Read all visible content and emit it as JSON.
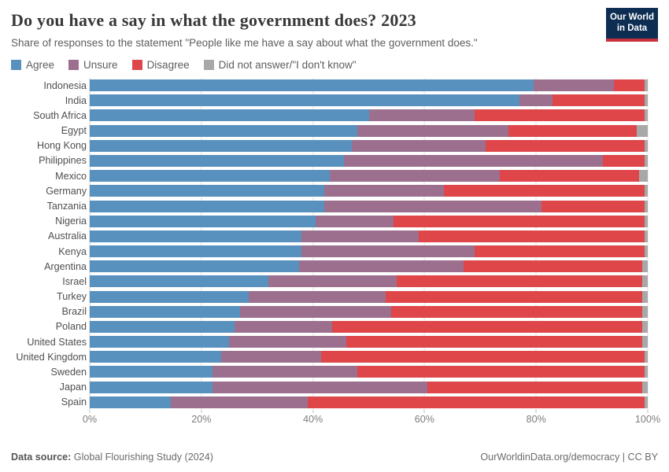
{
  "header": {
    "title": "Do you have a say in what the government does? 2023",
    "subtitle": "Share of responses to the statement \"People like me have a say about what the government does.\"",
    "logo": {
      "line1": "Our World",
      "line2": "in Data",
      "bg_color": "#0d2e52",
      "stripe_color": "#c9303c"
    }
  },
  "legend": [
    {
      "label": "Agree",
      "color": "#5890be"
    },
    {
      "label": "Unsure",
      "color": "#9c6f8f"
    },
    {
      "label": "Disagree",
      "color": "#de464a"
    },
    {
      "label": "Did not answer/\"I don't know\"",
      "color": "#a8a8a8"
    }
  ],
  "chart_data": {
    "type": "bar",
    "stacked": true,
    "orientation": "horizontal",
    "title": "Do you have a say in what the government does? 2023",
    "xlabel": "",
    "ylabel": "",
    "xlim": [
      0,
      100
    ],
    "grid": true,
    "legend_position": "top",
    "x_ticks": [
      "0%",
      "20%",
      "40%",
      "60%",
      "80%",
      "100%"
    ],
    "x_tick_values": [
      0,
      20,
      40,
      60,
      80,
      100
    ],
    "categories": [
      "Indonesia",
      "India",
      "South Africa",
      "Egypt",
      "Hong Kong",
      "Philippines",
      "Mexico",
      "Germany",
      "Tanzania",
      "Nigeria",
      "Australia",
      "Kenya",
      "Argentina",
      "Israel",
      "Turkey",
      "Brazil",
      "Poland",
      "United States",
      "United Kingdom",
      "Sweden",
      "Japan",
      "Spain"
    ],
    "series": [
      {
        "name": "Agree",
        "color": "#5890be",
        "values": [
          79.5,
          77,
          50,
          48,
          47,
          45.5,
          43,
          42,
          42,
          40.5,
          38,
          38,
          37.5,
          32,
          28.5,
          27,
          26,
          25,
          23.5,
          22,
          22,
          14.5
        ]
      },
      {
        "name": "Unsure",
        "color": "#9c6f8f",
        "values": [
          14.5,
          6,
          19,
          27,
          24,
          46.5,
          30.5,
          21.5,
          39,
          14,
          21,
          31,
          29.5,
          23,
          24.5,
          27,
          17.5,
          21,
          18,
          26,
          38.5,
          24.5
        ]
      },
      {
        "name": "Disagree",
        "color": "#de464a",
        "values": [
          5.5,
          16.5,
          30.5,
          23,
          28.5,
          7.5,
          25,
          36,
          18.5,
          45,
          40.5,
          30.5,
          32,
          44,
          46,
          45,
          55.5,
          53,
          58,
          51.5,
          38.5,
          60.5
        ]
      },
      {
        "name": "Did not answer/\"I don't know\"",
        "color": "#a8a8a8",
        "values": [
          0.5,
          0.5,
          0.5,
          2,
          0.5,
          0.5,
          1.5,
          0.5,
          0.5,
          0.5,
          0.5,
          0.5,
          1,
          1,
          1,
          1,
          1,
          1,
          0.5,
          0.5,
          1,
          0.5
        ]
      }
    ]
  },
  "footer": {
    "source_label": "Data source:",
    "source_text": " Global Flourishing Study (2024)",
    "right_text": "OurWorldinData.org/democracy | CC BY"
  }
}
